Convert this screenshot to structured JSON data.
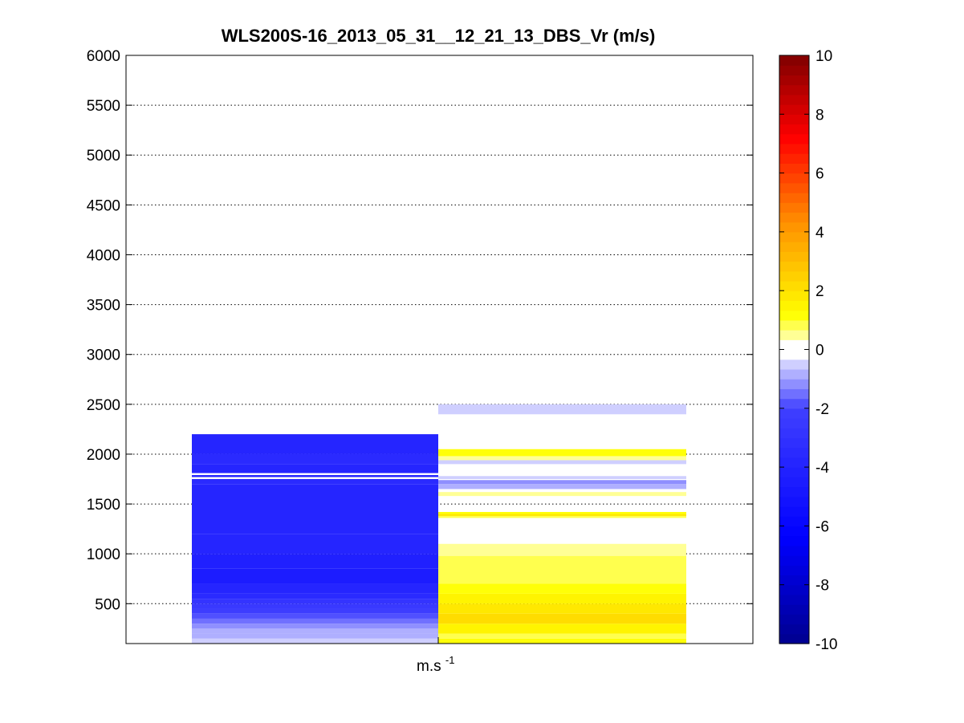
{
  "chart_data": {
    "type": "heatmap",
    "title": "WLS200S-16_2013_05_31__12_21_13_DBS_Vr (m/s)",
    "xlabel": "m.s",
    "xlabel_superscript": "-1",
    "ylabel": "",
    "ylim": [
      100,
      6000
    ],
    "yticks": [
      500,
      1000,
      1500,
      2000,
      2500,
      3000,
      3500,
      4000,
      4500,
      5000,
      5500,
      6000
    ],
    "grid": "horizontal dotted",
    "colorbar": {
      "range": [
        -10,
        10
      ],
      "ticks": [
        -10,
        -8,
        -6,
        -4,
        -2,
        0,
        2,
        4,
        6,
        8,
        10
      ],
      "levels": 60
    },
    "columns": [
      {
        "bands": [
          {
            "y0": 100,
            "y1": 150,
            "v": -0.6
          },
          {
            "y0": 150,
            "y1": 200,
            "v": -0.8
          },
          {
            "y0": 200,
            "y1": 250,
            "v": -1.0
          },
          {
            "y0": 250,
            "y1": 300,
            "v": -1.2
          },
          {
            "y0": 300,
            "y1": 350,
            "v": -1.5
          },
          {
            "y0": 350,
            "y1": 400,
            "v": -1.8
          },
          {
            "y0": 400,
            "y1": 450,
            "v": -2.2
          },
          {
            "y0": 450,
            "y1": 500,
            "v": -2.6
          },
          {
            "y0": 500,
            "y1": 550,
            "v": -3.0
          },
          {
            "y0": 550,
            "y1": 600,
            "v": -3.4
          },
          {
            "y0": 600,
            "y1": 700,
            "v": -3.7
          },
          {
            "y0": 700,
            "y1": 850,
            "v": -4.6
          },
          {
            "y0": 850,
            "y1": 1000,
            "v": -4.2
          },
          {
            "y0": 1000,
            "y1": 1200,
            "v": -4.0
          },
          {
            "y0": 1200,
            "y1": 1400,
            "v": -3.8
          },
          {
            "y0": 1400,
            "y1": 1700,
            "v": -3.7
          },
          {
            "y0": 1700,
            "y1": 1750,
            "v": -3.5
          },
          {
            "y0": 1750,
            "y1": 1770,
            "v": null
          },
          {
            "y0": 1770,
            "y1": 1790,
            "v": -4.0
          },
          {
            "y0": 1790,
            "y1": 1810,
            "v": null
          },
          {
            "y0": 1810,
            "y1": 1900,
            "v": -3.9
          },
          {
            "y0": 1900,
            "y1": 2000,
            "v": -3.6
          },
          {
            "y0": 2000,
            "y1": 2200,
            "v": -3.8
          }
        ]
      },
      {
        "bands": [
          {
            "y0": 100,
            "y1": 150,
            "v": 1.2
          },
          {
            "y0": 150,
            "y1": 200,
            "v": 0.7
          },
          {
            "y0": 200,
            "y1": 300,
            "v": 1.5
          },
          {
            "y0": 300,
            "y1": 400,
            "v": 2.0
          },
          {
            "y0": 400,
            "y1": 500,
            "v": 1.7
          },
          {
            "y0": 500,
            "y1": 600,
            "v": 1.4
          },
          {
            "y0": 600,
            "y1": 700,
            "v": 1.1
          },
          {
            "y0": 700,
            "y1": 980,
            "v": 0.9
          },
          {
            "y0": 980,
            "y1": 1100,
            "v": 0.5
          },
          {
            "y0": 1330,
            "y1": 1360,
            "v": -0.2
          },
          {
            "y0": 1360,
            "y1": 1380,
            "v": 0.8
          },
          {
            "y0": 1380,
            "y1": 1400,
            "v": 1.8
          },
          {
            "y0": 1400,
            "y1": 1420,
            "v": 1.0
          },
          {
            "y0": 1580,
            "y1": 1620,
            "v": 0.4
          },
          {
            "y0": 1650,
            "y1": 1700,
            "v": -0.9
          },
          {
            "y0": 1700,
            "y1": 1740,
            "v": -1.1
          },
          {
            "y0": 1750,
            "y1": 1780,
            "v": -0.4
          },
          {
            "y0": 1900,
            "y1": 1940,
            "v": -0.5
          },
          {
            "y0": 1940,
            "y1": 1980,
            "v": 0.5
          },
          {
            "y0": 1980,
            "y1": 2050,
            "v": 1.0
          },
          {
            "y0": 2400,
            "y1": 2500,
            "v": -0.6
          }
        ]
      }
    ]
  }
}
